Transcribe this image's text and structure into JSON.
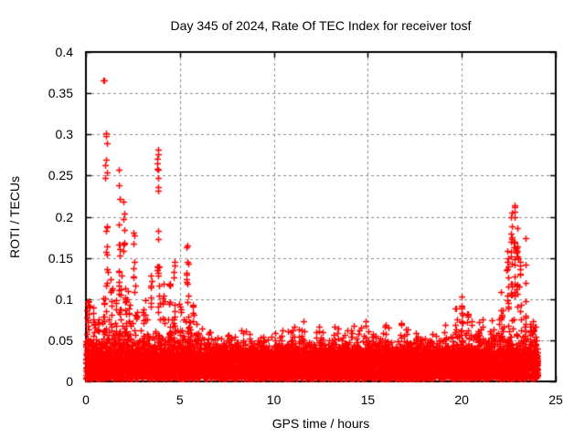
{
  "chart_data": {
    "type": "scatter",
    "title": "Day 345 of 2024, Rate Of TEC Index for receiver tosf",
    "xlabel": "GPS time / hours",
    "ylabel": "ROTI / TECUs",
    "xlim": [
      0,
      25
    ],
    "ylim": [
      0,
      0.4
    ],
    "xticks": [
      {
        "v": 0,
        "label": "0"
      },
      {
        "v": 5,
        "label": "5"
      },
      {
        "v": 10,
        "label": "10"
      },
      {
        "v": 15,
        "label": "15"
      },
      {
        "v": 20,
        "label": "20"
      },
      {
        "v": 25,
        "label": "25"
      }
    ],
    "yticks": [
      {
        "v": 0,
        "label": "0"
      },
      {
        "v": 0.05,
        "label": "0.05"
      },
      {
        "v": 0.1,
        "label": "0.1"
      },
      {
        "v": 0.15,
        "label": "0.15"
      },
      {
        "v": 0.2,
        "label": "0.2"
      },
      {
        "v": 0.25,
        "label": "0.25"
      },
      {
        "v": 0.3,
        "label": "0.3"
      },
      {
        "v": 0.35,
        "label": "0.35"
      },
      {
        "v": 0.4,
        "label": "0.4"
      }
    ],
    "grid": true,
    "grid_color": "#8c8c8c",
    "border_color": "#000000",
    "text_color": "#000000",
    "background_color": "#ffffff",
    "legend": "none",
    "marker": {
      "symbol": "plus",
      "color": "#ff0000",
      "size": 7
    },
    "series_name": "ROTI",
    "data_extent": {
      "x_min": 0.0,
      "x_max": 24.05,
      "y_min": 0.002,
      "y_max": 0.367
    },
    "dense_band": {
      "description": "continuous dense band of ROTI samples across 0-24h",
      "count": 9500,
      "y_core": [
        0.003,
        0.03
      ],
      "fuzz_sigma": 0.0065,
      "fuzz_fraction": 0.3,
      "fuzz_envelope": [
        {
          "x0": 0.0,
          "x1": 6.0,
          "f": 1.7
        },
        {
          "x0": 6.0,
          "x1": 19.3,
          "f": 1.0
        },
        {
          "x0": 19.3,
          "x1": 21.0,
          "f": 1.3
        },
        {
          "x0": 21.0,
          "x1": 24.05,
          "f": 1.6
        }
      ]
    },
    "spike_clusters": [
      {
        "x": 0.1,
        "dx": 0.08,
        "n": 14,
        "y0": 0.04,
        "y1": 0.105
      },
      {
        "x": 0.45,
        "dx": 0.08,
        "n": 8,
        "y0": 0.04,
        "y1": 0.09
      },
      {
        "x": 0.93,
        "dx": 0.0,
        "n": 1,
        "y0": 0.366,
        "y1": 0.367
      },
      {
        "x": 1.07,
        "dx": 0.04,
        "n": 6,
        "y0": 0.24,
        "y1": 0.301
      },
      {
        "x": 1.1,
        "dx": 0.07,
        "n": 10,
        "y0": 0.1,
        "y1": 0.205
      },
      {
        "x": 1.0,
        "dx": 0.1,
        "n": 12,
        "y0": 0.05,
        "y1": 0.105
      },
      {
        "x": 1.35,
        "dx": 0.06,
        "n": 10,
        "y0": 0.05,
        "y1": 0.13
      },
      {
        "x": 1.58,
        "dx": 0.05,
        "n": 8,
        "y0": 0.05,
        "y1": 0.115
      },
      {
        "x": 1.75,
        "dx": 0.05,
        "n": 9,
        "y0": 0.12,
        "y1": 0.257
      },
      {
        "x": 1.8,
        "dx": 0.08,
        "n": 14,
        "y0": 0.05,
        "y1": 0.135
      },
      {
        "x": 2.05,
        "dx": 0.05,
        "n": 8,
        "y0": 0.13,
        "y1": 0.218
      },
      {
        "x": 2.1,
        "dx": 0.08,
        "n": 12,
        "y0": 0.05,
        "y1": 0.13
      },
      {
        "x": 2.3,
        "dx": 0.06,
        "n": 8,
        "y0": 0.05,
        "y1": 0.12
      },
      {
        "x": 2.55,
        "dx": 0.05,
        "n": 9,
        "y0": 0.1,
        "y1": 0.2
      },
      {
        "x": 2.7,
        "dx": 0.08,
        "n": 8,
        "y0": 0.04,
        "y1": 0.095
      },
      {
        "x": 3.1,
        "dx": 0.07,
        "n": 8,
        "y0": 0.04,
        "y1": 0.1
      },
      {
        "x": 3.45,
        "dx": 0.06,
        "n": 8,
        "y0": 0.05,
        "y1": 0.14
      },
      {
        "x": 3.82,
        "dx": 0.04,
        "n": 12,
        "y0": 0.13,
        "y1": 0.281
      },
      {
        "x": 3.85,
        "dx": 0.07,
        "n": 10,
        "y0": 0.05,
        "y1": 0.157
      },
      {
        "x": 4.15,
        "dx": 0.06,
        "n": 8,
        "y0": 0.05,
        "y1": 0.12
      },
      {
        "x": 4.45,
        "dx": 0.06,
        "n": 8,
        "y0": 0.05,
        "y1": 0.125
      },
      {
        "x": 4.7,
        "dx": 0.06,
        "n": 8,
        "y0": 0.06,
        "y1": 0.15
      },
      {
        "x": 5.0,
        "dx": 0.06,
        "n": 7,
        "y0": 0.05,
        "y1": 0.12
      },
      {
        "x": 5.38,
        "dx": 0.05,
        "n": 9,
        "y0": 0.09,
        "y1": 0.165
      },
      {
        "x": 5.45,
        "dx": 0.08,
        "n": 8,
        "y0": 0.05,
        "y1": 0.11
      },
      {
        "x": 5.7,
        "dx": 0.06,
        "n": 6,
        "y0": 0.04,
        "y1": 0.095
      },
      {
        "x": 6.5,
        "dx": 0.1,
        "n": 5,
        "y0": 0.04,
        "y1": 0.068
      },
      {
        "x": 7.4,
        "dx": 0.1,
        "n": 4,
        "y0": 0.04,
        "y1": 0.062
      },
      {
        "x": 8.3,
        "dx": 0.1,
        "n": 5,
        "y0": 0.04,
        "y1": 0.065
      },
      {
        "x": 9.2,
        "dx": 0.1,
        "n": 4,
        "y0": 0.04,
        "y1": 0.06
      },
      {
        "x": 10.1,
        "dx": 0.1,
        "n": 5,
        "y0": 0.04,
        "y1": 0.066
      },
      {
        "x": 11.0,
        "dx": 0.1,
        "n": 5,
        "y0": 0.04,
        "y1": 0.07
      },
      {
        "x": 11.6,
        "dx": 0.1,
        "n": 5,
        "y0": 0.04,
        "y1": 0.075
      },
      {
        "x": 12.4,
        "dx": 0.1,
        "n": 4,
        "y0": 0.04,
        "y1": 0.064
      },
      {
        "x": 13.2,
        "dx": 0.1,
        "n": 5,
        "y0": 0.04,
        "y1": 0.07
      },
      {
        "x": 14.1,
        "dx": 0.1,
        "n": 4,
        "y0": 0.04,
        "y1": 0.066
      },
      {
        "x": 15.0,
        "dx": 0.1,
        "n": 4,
        "y0": 0.04,
        "y1": 0.062
      },
      {
        "x": 15.9,
        "dx": 0.1,
        "n": 5,
        "y0": 0.04,
        "y1": 0.07
      },
      {
        "x": 16.8,
        "dx": 0.1,
        "n": 5,
        "y0": 0.04,
        "y1": 0.072
      },
      {
        "x": 17.6,
        "dx": 0.1,
        "n": 4,
        "y0": 0.04,
        "y1": 0.065
      },
      {
        "x": 18.4,
        "dx": 0.1,
        "n": 4,
        "y0": 0.04,
        "y1": 0.06
      },
      {
        "x": 19.2,
        "dx": 0.1,
        "n": 5,
        "y0": 0.04,
        "y1": 0.075
      },
      {
        "x": 19.7,
        "dx": 0.06,
        "n": 7,
        "y0": 0.05,
        "y1": 0.095
      },
      {
        "x": 20.0,
        "dx": 0.04,
        "n": 10,
        "y0": 0.055,
        "y1": 0.103
      },
      {
        "x": 20.35,
        "dx": 0.06,
        "n": 6,
        "y0": 0.05,
        "y1": 0.085
      },
      {
        "x": 20.9,
        "dx": 0.08,
        "n": 6,
        "y0": 0.04,
        "y1": 0.08
      },
      {
        "x": 21.6,
        "dx": 0.08,
        "n": 6,
        "y0": 0.04,
        "y1": 0.085
      },
      {
        "x": 22.1,
        "dx": 0.07,
        "n": 8,
        "y0": 0.05,
        "y1": 0.12
      },
      {
        "x": 22.45,
        "dx": 0.06,
        "n": 14,
        "y0": 0.06,
        "y1": 0.165
      },
      {
        "x": 22.65,
        "dx": 0.05,
        "n": 16,
        "y0": 0.07,
        "y1": 0.205
      },
      {
        "x": 22.8,
        "dx": 0.05,
        "n": 14,
        "y0": 0.08,
        "y1": 0.214
      },
      {
        "x": 22.95,
        "dx": 0.05,
        "n": 12,
        "y0": 0.06,
        "y1": 0.19
      },
      {
        "x": 23.1,
        "dx": 0.05,
        "n": 8,
        "y0": 0.05,
        "y1": 0.155
      },
      {
        "x": 23.4,
        "dx": 0.05,
        "n": 8,
        "y0": 0.06,
        "y1": 0.19
      },
      {
        "x": 23.65,
        "dx": 0.06,
        "n": 6,
        "y0": 0.04,
        "y1": 0.1
      },
      {
        "x": 23.9,
        "dx": 0.05,
        "n": 5,
        "y0": 0.03,
        "y1": 0.07
      }
    ],
    "notable_points": [
      {
        "x": 0.96,
        "y": 0.366
      },
      {
        "x": 1.09,
        "y": 0.301
      },
      {
        "x": 3.82,
        "y": 0.281
      },
      {
        "x": 1.75,
        "y": 0.257
      },
      {
        "x": 22.8,
        "y": 0.214
      },
      {
        "x": 22.65,
        "y": 0.205
      },
      {
        "x": 5.38,
        "y": 0.165
      },
      {
        "x": 20.0,
        "y": 0.103
      }
    ]
  }
}
